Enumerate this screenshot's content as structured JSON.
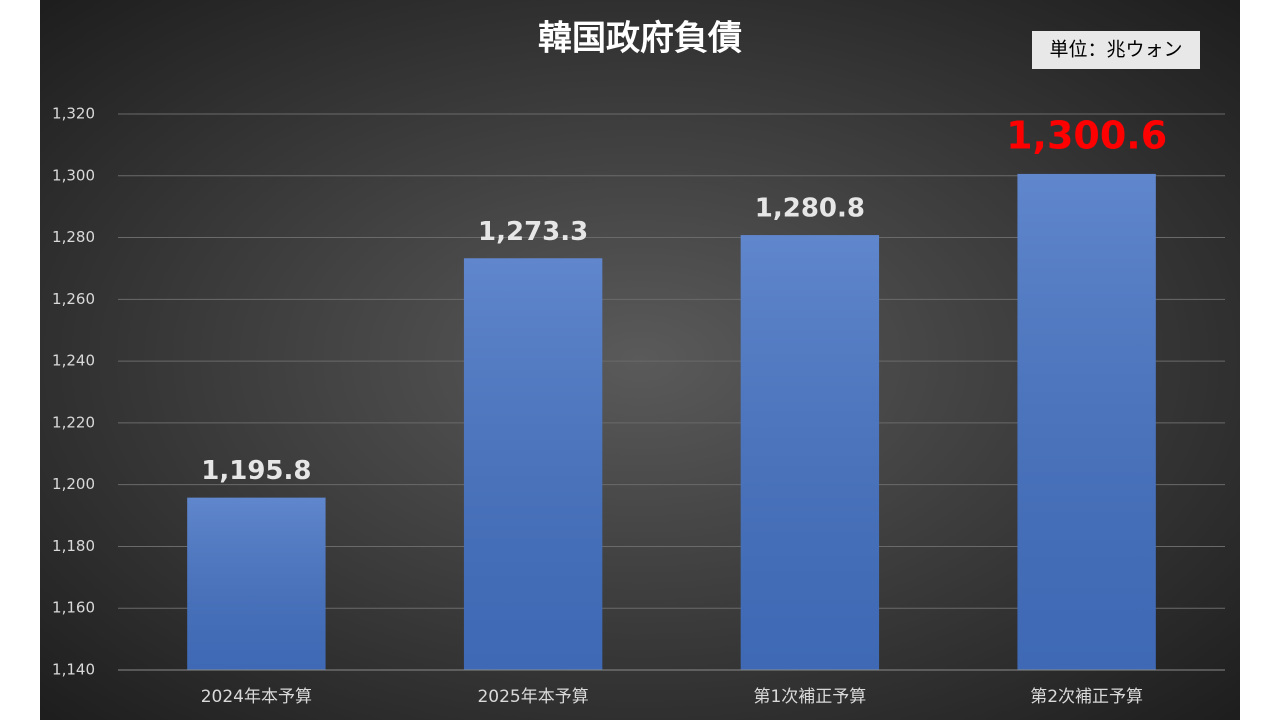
{
  "chart_data": {
    "type": "bar",
    "title": "韓国政府負債",
    "unit_note": "単位：兆ウォン",
    "categories": [
      "2024年本予算",
      "2025年本予算",
      "第1次補正予算",
      "第2次補正予算"
    ],
    "values": [
      1195.8,
      1273.3,
      1280.8,
      1300.6
    ],
    "value_labels": [
      "1,195.8",
      "1,273.3",
      "1,280.8",
      "1,300.6"
    ],
    "value_label_colors": [
      "#e6e6e6",
      "#e6e6e6",
      "#e6e6e6",
      "#ff0000"
    ],
    "color": "#4472c4",
    "ylim": [
      1140,
      1320
    ],
    "yticks": [
      {
        "value": 1140,
        "label": "1,140"
      },
      {
        "value": 1160,
        "label": "1,160"
      },
      {
        "value": 1180,
        "label": "1,180"
      },
      {
        "value": 1200,
        "label": "1,200"
      },
      {
        "value": 1220,
        "label": "1,220"
      },
      {
        "value": 1240,
        "label": "1,240"
      },
      {
        "value": 1260,
        "label": "1,260"
      },
      {
        "value": 1280,
        "label": "1,280"
      },
      {
        "value": 1300,
        "label": "1,300"
      },
      {
        "value": 1320,
        "label": "1,320"
      }
    ],
    "grid": true
  }
}
